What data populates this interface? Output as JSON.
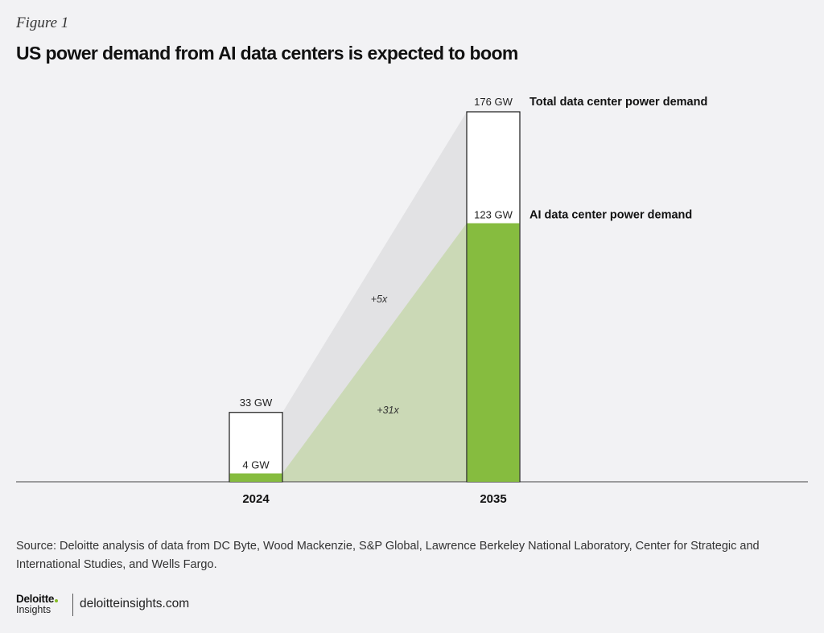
{
  "figure_label": "Figure 1",
  "title": "US power demand from AI data centers is expected to boom",
  "colors": {
    "ai_bar": "#86bc3f",
    "total_bar_fill": "#ffffff",
    "bar_stroke": "#1a1a1a",
    "total_wedge": "#e2e2e4",
    "ai_wedge": "#cbd9b6",
    "axis": "#444444",
    "brand_accent": "#86bc25"
  },
  "chart_data": {
    "type": "bar",
    "title": "US power demand from AI data centers is expected to boom",
    "categories": [
      "2024",
      "2035"
    ],
    "units": "GW",
    "ylim": [
      0,
      176
    ],
    "grid": false,
    "series": [
      {
        "name": "Total data center power demand",
        "values": [
          33,
          176
        ],
        "value_labels": [
          "33 GW",
          "176 GW"
        ]
      },
      {
        "name": "AI data center power demand",
        "values": [
          4,
          123
        ],
        "value_labels": [
          "4 GW",
          "123 GW"
        ]
      }
    ],
    "annotations": [
      {
        "text": "+5x",
        "series": "Total data center power demand"
      },
      {
        "text": "+31x",
        "series": "AI data center power demand"
      }
    ]
  },
  "source": "Source: Deloitte analysis of data from DC Byte, Wood Mackenzie, S&P Global, Lawrence Berkeley National Laboratory, Center for Strategic and International Studies, and Wells Fargo.",
  "footer": {
    "brand": "Deloitte",
    "brand_sub": "Insights",
    "url": "deloitteinsights.com"
  }
}
